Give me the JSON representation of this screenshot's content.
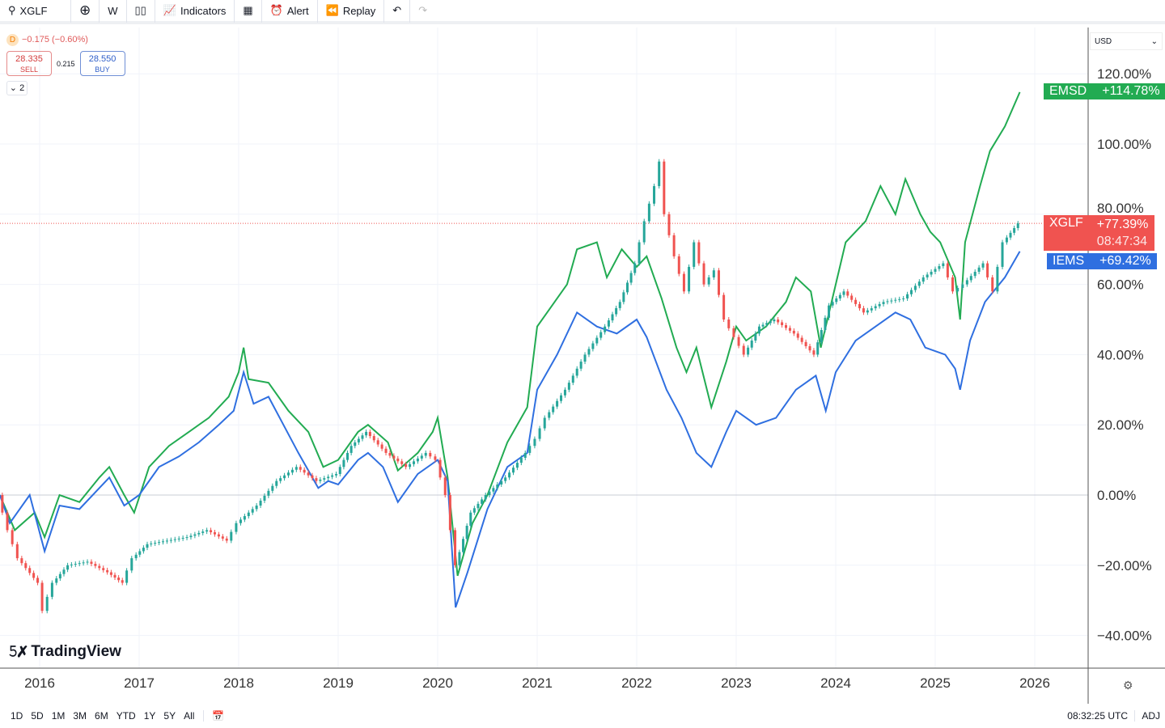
{
  "toolbar": {
    "symbol": "XGLF",
    "interval": "W",
    "indicators": "Indicators",
    "alert": "Alert",
    "replay": "Replay"
  },
  "legend": {
    "badge": "D",
    "change": "−0.175 (−0.60%)",
    "sell_price": "28.335",
    "sell_label": "SELL",
    "spread": "0.215",
    "buy_price": "28.550",
    "buy_label": "BUY",
    "collapse": "2"
  },
  "currency": "USD",
  "watermark": "TradingView",
  "tags": {
    "emsd": {
      "name": "EMSD",
      "value": "+114.78%",
      "color": "#22ab52"
    },
    "xglf": {
      "name": "XGLF",
      "value": "+77.39%",
      "countdown": "08:47:34",
      "color": "#f05350"
    },
    "iems": {
      "name": "IEMS",
      "value": "+69.42%",
      "color": "#2f6fe0"
    }
  },
  "bottom": {
    "ranges": [
      "1D",
      "5D",
      "1M",
      "3M",
      "6M",
      "YTD",
      "1Y",
      "5Y",
      "All"
    ],
    "clock": "08:32:25 UTC",
    "adj": "ADJ"
  },
  "chart_data": {
    "type": "line",
    "yticks": [
      "120.00%",
      "100.00%",
      "80.00%",
      "60.00%",
      "40.00%",
      "20.00%",
      "0.00%",
      "−20.00%",
      "−40.00%"
    ],
    "yvalues": [
      120,
      100,
      80,
      60,
      40,
      20,
      0,
      -20,
      -40
    ],
    "xticks": [
      "2016",
      "2017",
      "2018",
      "2019",
      "2020",
      "2021",
      "2022",
      "2023",
      "2024",
      "2025",
      "2026"
    ],
    "ylim": [
      -48,
      132
    ],
    "xlim": [
      2015.6,
      2026.5
    ],
    "grid": true,
    "series": [
      {
        "name": "EMSD",
        "color": "#22ab52",
        "style": "line",
        "x": [
          2015.6,
          2015.75,
          2015.95,
          2016.05,
          2016.2,
          2016.4,
          2016.6,
          2016.7,
          2016.85,
          2016.95,
          2017.1,
          2017.3,
          2017.5,
          2017.7,
          2017.9,
          2018.0,
          2018.05,
          2018.1,
          2018.3,
          2018.5,
          2018.7,
          2018.85,
          2019.0,
          2019.2,
          2019.3,
          2019.5,
          2019.6,
          2019.8,
          2019.95,
          2020.0,
          2020.1,
          2020.2,
          2020.35,
          2020.5,
          2020.7,
          2020.9,
          2021.0,
          2021.1,
          2021.2,
          2021.3,
          2021.4,
          2021.6,
          2021.7,
          2021.85,
          2022.0,
          2022.1,
          2022.25,
          2022.4,
          2022.5,
          2022.6,
          2022.75,
          2022.9,
          2023.0,
          2023.1,
          2023.3,
          2023.5,
          2023.6,
          2023.75,
          2023.85,
          2024.0,
          2024.1,
          2024.3,
          2024.45,
          2024.6,
          2024.7,
          2024.85,
          2024.95,
          2025.05,
          2025.2,
          2025.25,
          2025.3,
          2025.45,
          2025.55,
          2025.7,
          2025.85
        ],
        "y": [
          0,
          -10,
          -5,
          -12,
          0,
          -2,
          5,
          8,
          0,
          -5,
          8,
          14,
          18,
          22,
          28,
          35,
          42,
          33,
          32,
          24,
          18,
          8,
          10,
          18,
          20,
          15,
          7,
          12,
          18,
          22,
          5,
          -23,
          -8,
          0,
          15,
          25,
          48,
          52,
          56,
          60,
          70,
          72,
          62,
          70,
          65,
          68,
          56,
          42,
          35,
          42,
          25,
          38,
          48,
          44,
          48,
          55,
          62,
          58,
          42,
          60,
          72,
          78,
          88,
          80,
          90,
          80,
          75,
          72,
          62,
          50,
          72,
          88,
          98,
          105,
          114.78
        ]
      },
      {
        "name": "IEMS",
        "color": "#2f6fe0",
        "style": "line",
        "x": [
          2015.6,
          2015.7,
          2015.9,
          2016.05,
          2016.2,
          2016.4,
          2016.6,
          2016.7,
          2016.85,
          2017.0,
          2017.2,
          2017.4,
          2017.6,
          2017.8,
          2017.95,
          2018.05,
          2018.15,
          2018.3,
          2018.45,
          2018.6,
          2018.8,
          2018.9,
          2019.0,
          2019.2,
          2019.3,
          2019.45,
          2019.6,
          2019.8,
          2020.0,
          2020.1,
          2020.18,
          2020.3,
          2020.5,
          2020.7,
          2020.9,
          2021.0,
          2021.2,
          2021.4,
          2021.6,
          2021.8,
          2022.0,
          2022.1,
          2022.3,
          2022.45,
          2022.6,
          2022.75,
          2022.9,
          2023.0,
          2023.2,
          2023.4,
          2023.6,
          2023.8,
          2023.9,
          2024.0,
          2024.2,
          2024.4,
          2024.6,
          2024.75,
          2024.9,
          2025.1,
          2025.2,
          2025.25,
          2025.35,
          2025.5,
          2025.7,
          2025.85
        ],
        "y": [
          0,
          -8,
          0,
          -16,
          -3,
          -4,
          2,
          5,
          -3,
          0,
          8,
          11,
          15,
          20,
          24,
          35,
          26,
          28,
          20,
          12,
          2,
          4,
          3,
          10,
          12,
          8,
          -2,
          6,
          10,
          4,
          -32,
          -22,
          -4,
          8,
          12,
          30,
          40,
          52,
          48,
          46,
          50,
          45,
          30,
          22,
          12,
          8,
          18,
          24,
          20,
          22,
          30,
          34,
          24,
          35,
          44,
          48,
          52,
          50,
          42,
          40,
          36,
          30,
          44,
          55,
          62,
          69.42
        ]
      },
      {
        "name": "XGLF",
        "color": "#f05350",
        "up_color": "#26a69a",
        "style": "candles",
        "x": [
          2015.6,
          2015.7,
          2015.8,
          2016.0,
          2016.05,
          2016.15,
          2016.3,
          2016.5,
          2016.7,
          2016.85,
          2016.95,
          2017.1,
          2017.3,
          2017.5,
          2017.7,
          2017.9,
          2018.0,
          2018.2,
          2018.4,
          2018.6,
          2018.8,
          2019.0,
          2019.15,
          2019.3,
          2019.5,
          2019.7,
          2019.9,
          2020.0,
          2020.1,
          2020.2,
          2020.35,
          2020.5,
          2020.7,
          2020.9,
          2021.0,
          2021.1,
          2021.3,
          2021.5,
          2021.7,
          2021.85,
          2022.0,
          2022.1,
          2022.2,
          2022.25,
          2022.3,
          2022.4,
          2022.5,
          2022.6,
          2022.7,
          2022.8,
          2022.9,
          2023.0,
          2023.1,
          2023.25,
          2023.4,
          2023.6,
          2023.8,
          2023.95,
          2024.1,
          2024.3,
          2024.5,
          2024.7,
          2024.9,
          2025.1,
          2025.2,
          2025.3,
          2025.5,
          2025.6,
          2025.7,
          2025.85
        ],
        "y": [
          0,
          -10,
          -18,
          -25,
          -33,
          -25,
          -20,
          -19,
          -22,
          -25,
          -18,
          -14,
          -13,
          -12,
          -10,
          -13,
          -8,
          -3,
          4,
          8,
          4,
          6,
          14,
          18,
          12,
          8,
          12,
          10,
          0,
          -20,
          -5,
          0,
          5,
          12,
          16,
          22,
          30,
          40,
          48,
          55,
          66,
          78,
          88,
          95,
          80,
          68,
          58,
          72,
          60,
          64,
          50,
          45,
          40,
          48,
          50,
          46,
          40,
          54,
          58,
          52,
          55,
          56,
          62,
          66,
          58,
          60,
          66,
          58,
          72,
          77.39
        ]
      }
    ]
  }
}
